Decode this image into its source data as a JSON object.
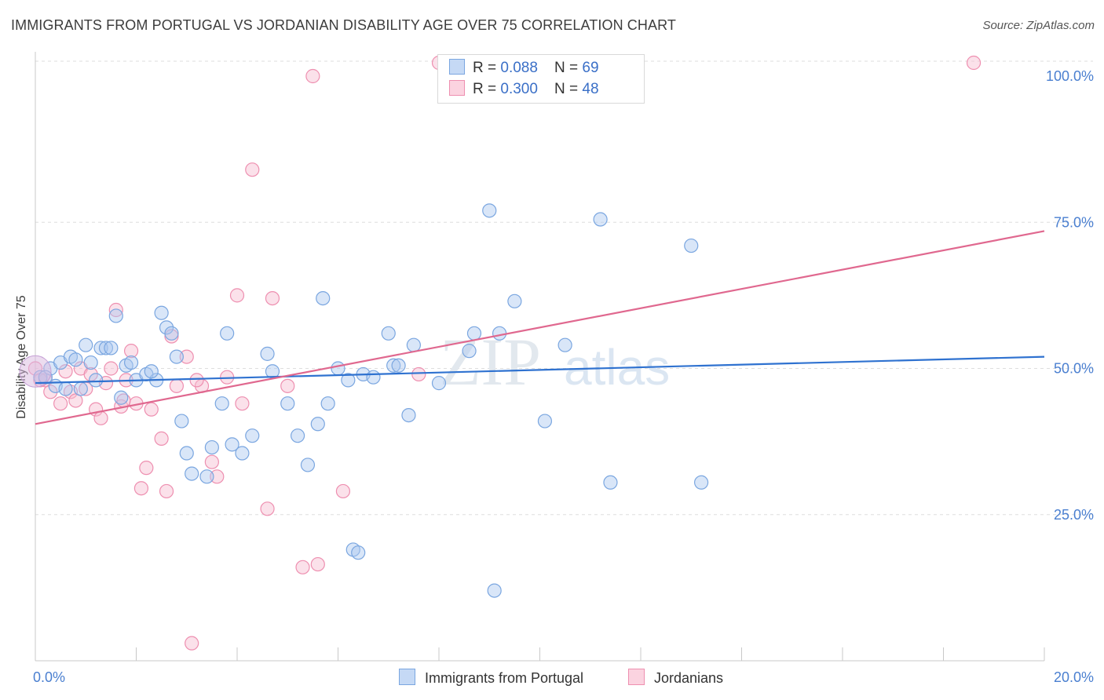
{
  "title": "IMMIGRANTS FROM PORTUGAL VS JORDANIAN DISABILITY AGE OVER 75 CORRELATION CHART",
  "source": "Source: ZipAtlas.com",
  "colors": {
    "blue_fill": "#aac8f0",
    "blue_stroke": "#7aa6e0",
    "blue_line": "#2f72d0",
    "pink_fill": "#f7bcd0",
    "pink_stroke": "#ee8fb0",
    "pink_line": "#e0688f",
    "tick_text": "#4a7fd0",
    "grid": "#dedede"
  },
  "legend_top": {
    "rows": [
      {
        "r_label": "R = ",
        "r_value": "0.088",
        "n_label": "N = ",
        "n_value": "69"
      },
      {
        "r_label": "R = ",
        "r_value": "0.300",
        "n_label": "N = ",
        "n_value": "48"
      }
    ]
  },
  "legend_bottom": {
    "items": [
      "Immigrants from Portugal",
      "Jordanians"
    ]
  },
  "chart_data": {
    "type": "scatter",
    "title": "IMMIGRANTS FROM PORTUGAL VS JORDANIAN DISABILITY AGE OVER 75 CORRELATION CHART",
    "xlabel": "",
    "ylabel": "Disability Age Over 75",
    "xlim": [
      0,
      20
    ],
    "ylim": [
      0,
      100
    ],
    "x_tick_labels": [
      "0.0%",
      "20.0%"
    ],
    "y_tick_labels": [
      "100.0%",
      "75.0%",
      "50.0%",
      "25.0%"
    ],
    "y_ticks": [
      100,
      75,
      50,
      25
    ],
    "grid": true,
    "legend_placement": "bottom",
    "series": [
      {
        "name": "Immigrants from Portugal",
        "r": 0.088,
        "n": 69,
        "trend": {
          "x": [
            0,
            20
          ],
          "y": [
            47.5,
            52.0
          ]
        },
        "points": [
          [
            0.1,
            48.5
          ],
          [
            0.3,
            50
          ],
          [
            0.4,
            47
          ],
          [
            0.5,
            51
          ],
          [
            0.7,
            52
          ],
          [
            0.8,
            51.5
          ],
          [
            0.9,
            46.5
          ],
          [
            1.0,
            54
          ],
          [
            1.1,
            51
          ],
          [
            1.2,
            48
          ],
          [
            1.3,
            53.5
          ],
          [
            1.4,
            53.5
          ],
          [
            1.5,
            53.5
          ],
          [
            1.6,
            59
          ],
          [
            1.7,
            45
          ],
          [
            1.8,
            50.5
          ],
          [
            1.9,
            51
          ],
          [
            2.0,
            48
          ],
          [
            2.2,
            49
          ],
          [
            2.4,
            48
          ],
          [
            2.5,
            59.5
          ],
          [
            2.6,
            57
          ],
          [
            2.7,
            56
          ],
          [
            2.8,
            52
          ],
          [
            2.9,
            41
          ],
          [
            3.0,
            35.5
          ],
          [
            3.1,
            32
          ],
          [
            3.5,
            36.5
          ],
          [
            3.7,
            44
          ],
          [
            3.8,
            56
          ],
          [
            3.9,
            37
          ],
          [
            4.1,
            35.5
          ],
          [
            4.3,
            38.5
          ],
          [
            4.6,
            52.5
          ],
          [
            4.7,
            49.5
          ],
          [
            5.0,
            44
          ],
          [
            5.2,
            38.5
          ],
          [
            5.4,
            33.5
          ],
          [
            5.6,
            40.5
          ],
          [
            5.7,
            62
          ],
          [
            5.8,
            44
          ],
          [
            6.0,
            50
          ],
          [
            6.2,
            48
          ],
          [
            6.5,
            49
          ],
          [
            6.7,
            48.5
          ],
          [
            7.0,
            56
          ],
          [
            7.1,
            50.5
          ],
          [
            7.2,
            50.5
          ],
          [
            7.4,
            42
          ],
          [
            7.5,
            54
          ],
          [
            8.0,
            47.5
          ],
          [
            8.6,
            53
          ],
          [
            8.7,
            56
          ],
          [
            9.0,
            77
          ],
          [
            9.2,
            56
          ],
          [
            9.5,
            61.5
          ],
          [
            10.1,
            41
          ],
          [
            10.5,
            54
          ],
          [
            11.2,
            75.5
          ],
          [
            11.4,
            30.5
          ],
          [
            13.0,
            71
          ],
          [
            13.2,
            30.5
          ],
          [
            0.2,
            48.5
          ],
          [
            0.6,
            46.5
          ],
          [
            2.3,
            49.5
          ],
          [
            3.4,
            31.5
          ],
          [
            6.3,
            19
          ],
          [
            6.4,
            18.5
          ],
          [
            9.1,
            12
          ]
        ]
      },
      {
        "name": "Jordanians",
        "r": 0.3,
        "n": 48,
        "trend": {
          "x": [
            0,
            20
          ],
          "y": [
            40.5,
            73.5
          ]
        },
        "points": [
          [
            0.0,
            50
          ],
          [
            0.2,
            48
          ],
          [
            0.3,
            46
          ],
          [
            0.5,
            44
          ],
          [
            0.6,
            49.5
          ],
          [
            0.7,
            46
          ],
          [
            0.8,
            44.5
          ],
          [
            0.9,
            50
          ],
          [
            1.0,
            46.5
          ],
          [
            1.1,
            49
          ],
          [
            1.2,
            43
          ],
          [
            1.3,
            41.5
          ],
          [
            1.4,
            47.5
          ],
          [
            1.5,
            50
          ],
          [
            1.6,
            60
          ],
          [
            1.7,
            43.5
          ],
          [
            1.8,
            48
          ],
          [
            1.9,
            53
          ],
          [
            2.0,
            44
          ],
          [
            2.1,
            29.5
          ],
          [
            2.2,
            33
          ],
          [
            2.3,
            43
          ],
          [
            2.5,
            38
          ],
          [
            2.6,
            29
          ],
          [
            2.7,
            55.5
          ],
          [
            2.8,
            47
          ],
          [
            3.0,
            52
          ],
          [
            3.1,
            3
          ],
          [
            3.3,
            47
          ],
          [
            3.5,
            34
          ],
          [
            3.6,
            31.5
          ],
          [
            3.8,
            48.5
          ],
          [
            4.0,
            62.5
          ],
          [
            4.1,
            44
          ],
          [
            4.3,
            84
          ],
          [
            4.6,
            26
          ],
          [
            4.7,
            62
          ],
          [
            5.0,
            47
          ],
          [
            5.3,
            16
          ],
          [
            5.5,
            100
          ],
          [
            5.6,
            16.5
          ],
          [
            6.1,
            29
          ],
          [
            7.6,
            49
          ],
          [
            8.0,
            104
          ],
          [
            18.6,
            104
          ],
          [
            0.1,
            48
          ],
          [
            1.75,
            44.5
          ],
          [
            3.2,
            48
          ]
        ]
      }
    ]
  }
}
